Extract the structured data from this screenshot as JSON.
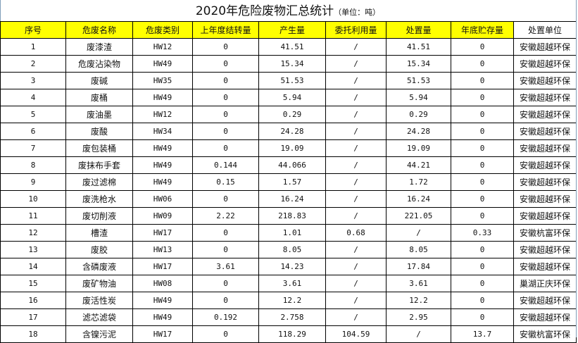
{
  "title": "2020年危险废物汇总统计",
  "unit": "（单位：吨）",
  "headers": [
    "序号",
    "危废名称",
    "危废类别",
    "上年度结转量",
    "产生量",
    "委托利用量",
    "处置量",
    "年底贮存量",
    "处置单位"
  ],
  "rows": [
    [
      "1",
      "废漆渣",
      "HW12",
      "0",
      "41.51",
      "/",
      "41.51",
      "0",
      "安徽超越环保"
    ],
    [
      "2",
      "危废沾染物",
      "HW49",
      "0",
      "15.34",
      "/",
      "15.34",
      "0",
      "安徽超越环保"
    ],
    [
      "3",
      "废碱",
      "HW35",
      "0",
      "51.53",
      "/",
      "51.53",
      "0",
      "安徽超越环保"
    ],
    [
      "4",
      "废桶",
      "HW49",
      "0",
      "5.94",
      "/",
      "5.94",
      "0",
      "安徽超越环保"
    ],
    [
      "5",
      "废油墨",
      "HW12",
      "0",
      "0.29",
      "/",
      "0.29",
      "0",
      "安徽超越环保"
    ],
    [
      "6",
      "废酸",
      "HW34",
      "0",
      "24.28",
      "/",
      "24.28",
      "0",
      "安徽超越环保"
    ],
    [
      "7",
      "废包装桶",
      "HW49",
      "0",
      "19.09",
      "/",
      "19.09",
      "0",
      "安徽超越环保"
    ],
    [
      "8",
      "废抹布手套",
      "HW49",
      "0.144",
      "44.066",
      "/",
      "44.21",
      "0",
      "安徽超越环保"
    ],
    [
      "9",
      "废过滤棉",
      "HW49",
      "0.15",
      "1.57",
      "/",
      "1.72",
      "0",
      "安徽超越环保"
    ],
    [
      "10",
      "废洗枪水",
      "HW06",
      "0",
      "16.24",
      "/",
      "16.24",
      "0",
      "安徽超越环保"
    ],
    [
      "11",
      "废切削液",
      "HW09",
      "2.22",
      "218.83",
      "/",
      "221.05",
      "0",
      "安徽超越环保"
    ],
    [
      "12",
      "槽渣",
      "HW17",
      "0",
      "1.01",
      "0.68",
      "/",
      "0.33",
      "安徽杭富环保"
    ],
    [
      "13",
      "废胶",
      "HW13",
      "0",
      "8.05",
      "/",
      "8.05",
      "0",
      "安徽超越环保"
    ],
    [
      "14",
      "含磷废液",
      "HW17",
      "3.61",
      "14.23",
      "/",
      "17.84",
      "0",
      "安徽超越环保"
    ],
    [
      "15",
      "废矿物油",
      "HW08",
      "0",
      "3.61",
      "/",
      "3.61",
      "0",
      "巢湖正庆环保"
    ],
    [
      "16",
      "废活性炭",
      "HW49",
      "0",
      "12.2",
      "/",
      "12.2",
      "0",
      "安徽超越环保"
    ],
    [
      "17",
      "滤芯滤袋",
      "HW49",
      "0.192",
      "2.758",
      "/",
      "2.95",
      "0",
      "安徽超越环保"
    ],
    [
      "18",
      "含镍污泥",
      "HW17",
      "0",
      "118.29",
      "104.59",
      "/",
      "13.7",
      "安徽杭富环保"
    ]
  ]
}
